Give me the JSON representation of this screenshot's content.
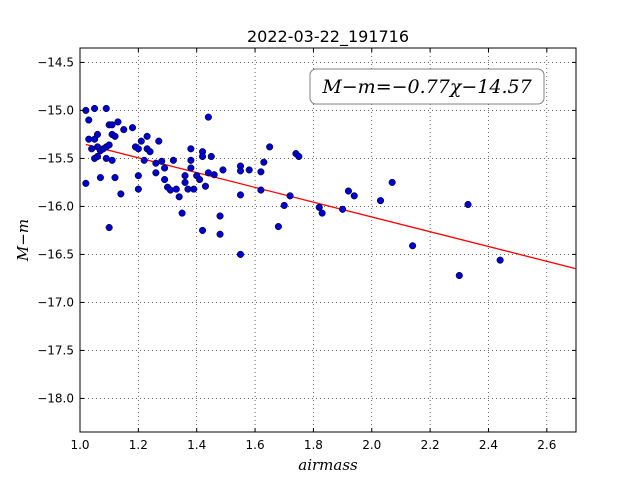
{
  "chart_data": {
    "type": "scatter",
    "title": "2022-03-22_191716",
    "xlabel": "airmass",
    "ylabel": "M−m",
    "xlim": [
      1.0,
      2.7
    ],
    "ylim": [
      -18.35,
      -14.35
    ],
    "y_inverted": false,
    "grid": true,
    "x_ticks": [
      "1.0",
      "1.2",
      "1.4",
      "1.6",
      "1.8",
      "2.0",
      "2.2",
      "2.4",
      "2.6"
    ],
    "y_ticks": [
      "−14.5",
      "−15.0",
      "−15.5",
      "−16.0",
      "−16.5",
      "−17.0",
      "−17.5",
      "−18.0"
    ],
    "annotation": "M−m=−0.77χ−14.57",
    "annotation_position": "top-right",
    "point_color": "#0000cc",
    "fit_line": {
      "slope": -0.77,
      "intercept": -14.57,
      "x_range": [
        1.02,
        2.7
      ],
      "color": "#ff0000"
    },
    "points": [
      {
        "x": 1.02,
        "y": -15.0
      },
      {
        "x": 1.03,
        "y": -15.1
      },
      {
        "x": 1.05,
        "y": -14.98
      },
      {
        "x": 1.09,
        "y": -14.98
      },
      {
        "x": 1.03,
        "y": -15.3
      },
      {
        "x": 1.05,
        "y": -15.3
      },
      {
        "x": 1.06,
        "y": -15.25
      },
      {
        "x": 1.1,
        "y": -15.15
      },
      {
        "x": 1.11,
        "y": -15.15
      },
      {
        "x": 1.13,
        "y": -15.12
      },
      {
        "x": 1.15,
        "y": -15.2
      },
      {
        "x": 1.18,
        "y": -15.18
      },
      {
        "x": 1.11,
        "y": -15.25
      },
      {
        "x": 1.12,
        "y": -15.27
      },
      {
        "x": 1.04,
        "y": -15.4
      },
      {
        "x": 1.06,
        "y": -15.38
      },
      {
        "x": 1.07,
        "y": -15.42
      },
      {
        "x": 1.08,
        "y": -15.4
      },
      {
        "x": 1.09,
        "y": -15.38
      },
      {
        "x": 1.1,
        "y": -15.36
      },
      {
        "x": 1.05,
        "y": -15.5
      },
      {
        "x": 1.06,
        "y": -15.48
      },
      {
        "x": 1.09,
        "y": -15.5
      },
      {
        "x": 1.11,
        "y": -15.52
      },
      {
        "x": 1.02,
        "y": -15.76
      },
      {
        "x": 1.07,
        "y": -15.7
      },
      {
        "x": 1.12,
        "y": -15.7
      },
      {
        "x": 1.14,
        "y": -15.87
      },
      {
        "x": 1.1,
        "y": -16.22
      },
      {
        "x": 1.19,
        "y": -15.38
      },
      {
        "x": 1.2,
        "y": -15.4
      },
      {
        "x": 1.21,
        "y": -15.32
      },
      {
        "x": 1.23,
        "y": -15.27
      },
      {
        "x": 1.23,
        "y": -15.4
      },
      {
        "x": 1.24,
        "y": -15.43
      },
      {
        "x": 1.22,
        "y": -15.52
      },
      {
        "x": 1.27,
        "y": -15.32
      },
      {
        "x": 1.2,
        "y": -15.68
      },
      {
        "x": 1.2,
        "y": -15.82
      },
      {
        "x": 1.26,
        "y": -15.55
      },
      {
        "x": 1.26,
        "y": -15.65
      },
      {
        "x": 1.28,
        "y": -15.53
      },
      {
        "x": 1.29,
        "y": -15.6
      },
      {
        "x": 1.29,
        "y": -15.72
      },
      {
        "x": 1.3,
        "y": -15.8
      },
      {
        "x": 1.31,
        "y": -15.83
      },
      {
        "x": 1.32,
        "y": -15.52
      },
      {
        "x": 1.33,
        "y": -15.82
      },
      {
        "x": 1.34,
        "y": -15.9
      },
      {
        "x": 1.35,
        "y": -16.07
      },
      {
        "x": 1.36,
        "y": -15.75
      },
      {
        "x": 1.36,
        "y": -15.68
      },
      {
        "x": 1.37,
        "y": -15.82
      },
      {
        "x": 1.38,
        "y": -15.4
      },
      {
        "x": 1.38,
        "y": -15.52
      },
      {
        "x": 1.38,
        "y": -15.6
      },
      {
        "x": 1.39,
        "y": -15.82
      },
      {
        "x": 1.4,
        "y": -15.68
      },
      {
        "x": 1.41,
        "y": -15.72
      },
      {
        "x": 1.42,
        "y": -15.43
      },
      {
        "x": 1.42,
        "y": -15.48
      },
      {
        "x": 1.43,
        "y": -15.79
      },
      {
        "x": 1.44,
        "y": -15.07
      },
      {
        "x": 1.44,
        "y": -15.65
      },
      {
        "x": 1.45,
        "y": -15.48
      },
      {
        "x": 1.46,
        "y": -15.67
      },
      {
        "x": 1.42,
        "y": -16.25
      },
      {
        "x": 1.48,
        "y": -16.1
      },
      {
        "x": 1.48,
        "y": -16.29
      },
      {
        "x": 1.49,
        "y": -15.62
      },
      {
        "x": 1.55,
        "y": -15.58
      },
      {
        "x": 1.55,
        "y": -15.63
      },
      {
        "x": 1.55,
        "y": -15.88
      },
      {
        "x": 1.58,
        "y": -15.62
      },
      {
        "x": 1.55,
        "y": -16.5
      },
      {
        "x": 1.62,
        "y": -15.64
      },
      {
        "x": 1.63,
        "y": -15.54
      },
      {
        "x": 1.62,
        "y": -15.83
      },
      {
        "x": 1.65,
        "y": -15.38
      },
      {
        "x": 1.68,
        "y": -16.21
      },
      {
        "x": 1.7,
        "y": -15.99
      },
      {
        "x": 1.72,
        "y": -15.89
      },
      {
        "x": 1.74,
        "y": -15.45
      },
      {
        "x": 1.75,
        "y": -15.48
      },
      {
        "x": 1.82,
        "y": -16.01
      },
      {
        "x": 1.83,
        "y": -16.07
      },
      {
        "x": 1.9,
        "y": -16.03
      },
      {
        "x": 1.92,
        "y": -15.84
      },
      {
        "x": 1.94,
        "y": -15.89
      },
      {
        "x": 2.03,
        "y": -15.94
      },
      {
        "x": 2.07,
        "y": -15.75
      },
      {
        "x": 2.14,
        "y": -16.41
      },
      {
        "x": 2.3,
        "y": -16.72
      },
      {
        "x": 2.33,
        "y": -15.98
      },
      {
        "x": 2.44,
        "y": -16.56
      }
    ]
  }
}
